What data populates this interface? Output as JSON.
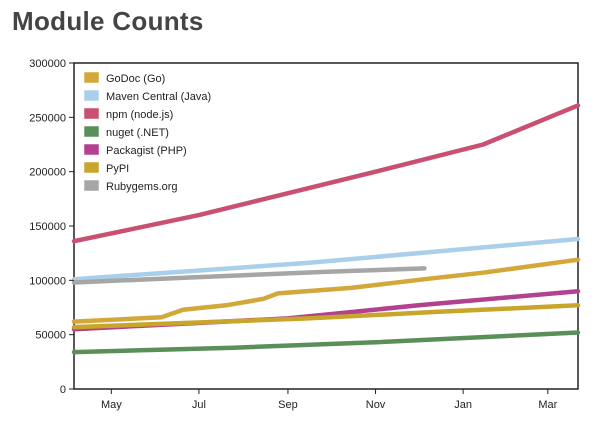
{
  "page_title": "Module Counts",
  "chart_data": {
    "type": "line",
    "title": "Module Counts",
    "xlabel": "",
    "ylabel": "",
    "x_axis_type": "date",
    "x_range": [
      "2014-04-05",
      "2015-03-22"
    ],
    "ylim": [
      0,
      300000
    ],
    "y_ticks": [
      0,
      50000,
      100000,
      150000,
      200000,
      250000,
      300000
    ],
    "x_ticks": [
      {
        "date": "2014-05-01",
        "label": "May"
      },
      {
        "date": "2014-07-01",
        "label": "Jul"
      },
      {
        "date": "2014-09-01",
        "label": "Sep"
      },
      {
        "date": "2014-11-01",
        "label": "Nov"
      },
      {
        "date": "2015-01-01",
        "label": "Jan"
      },
      {
        "date": "2015-03-01",
        "label": "Mar"
      }
    ],
    "grid": false,
    "legend_position": "top-left",
    "series": [
      {
        "name": "GoDoc (Go)",
        "color": "#d4a73a",
        "points": [
          {
            "x": "2014-04-05",
            "y": 62000
          },
          {
            "x": "2014-06-05",
            "y": 66000
          },
          {
            "x": "2014-06-20",
            "y": 73000
          },
          {
            "x": "2014-07-20",
            "y": 77000
          },
          {
            "x": "2014-08-15",
            "y": 83000
          },
          {
            "x": "2014-08-25",
            "y": 88000
          },
          {
            "x": "2014-10-15",
            "y": 93000
          },
          {
            "x": "2014-12-05",
            "y": 101000
          },
          {
            "x": "2015-01-15",
            "y": 107000
          },
          {
            "x": "2015-03-22",
            "y": 119000
          }
        ]
      },
      {
        "name": "Maven Central (Java)",
        "color": "#a9cfea",
        "points": [
          {
            "x": "2014-04-05",
            "y": 101000
          },
          {
            "x": "2014-09-15",
            "y": 116000
          },
          {
            "x": "2015-03-22",
            "y": 138000
          }
        ]
      },
      {
        "name": "npm (node.js)",
        "color": "#c94f73",
        "points": [
          {
            "x": "2014-04-05",
            "y": 136000
          },
          {
            "x": "2014-07-01",
            "y": 160000
          },
          {
            "x": "2014-11-01",
            "y": 200000
          },
          {
            "x": "2015-01-15",
            "y": 225000
          },
          {
            "x": "2015-03-22",
            "y": 261000
          }
        ]
      },
      {
        "name": "nuget (.NET)",
        "color": "#5a8f5a",
        "points": [
          {
            "x": "2014-04-05",
            "y": 34000
          },
          {
            "x": "2014-07-25",
            "y": 38000
          },
          {
            "x": "2014-11-01",
            "y": 43000
          },
          {
            "x": "2015-03-22",
            "y": 52000
          }
        ]
      },
      {
        "name": "Packagist (PHP)",
        "color": "#b2418f",
        "points": [
          {
            "x": "2014-04-05",
            "y": 55000
          },
          {
            "x": "2014-09-01",
            "y": 65000
          },
          {
            "x": "2014-12-01",
            "y": 77000
          },
          {
            "x": "2015-03-22",
            "y": 90000
          }
        ]
      },
      {
        "name": "PyPI",
        "color": "#c9a52b",
        "points": [
          {
            "x": "2014-04-05",
            "y": 57000
          },
          {
            "x": "2014-09-15",
            "y": 65000
          },
          {
            "x": "2014-12-15",
            "y": 71000
          },
          {
            "x": "2015-03-22",
            "y": 77000
          }
        ]
      },
      {
        "name": "Rubygems.org",
        "color": "#a6a6a6",
        "points": [
          {
            "x": "2014-04-05",
            "y": 98000
          },
          {
            "x": "2014-07-01",
            "y": 103000
          },
          {
            "x": "2014-10-01",
            "y": 108000
          },
          {
            "x": "2014-12-05",
            "y": 111000
          }
        ]
      }
    ]
  }
}
